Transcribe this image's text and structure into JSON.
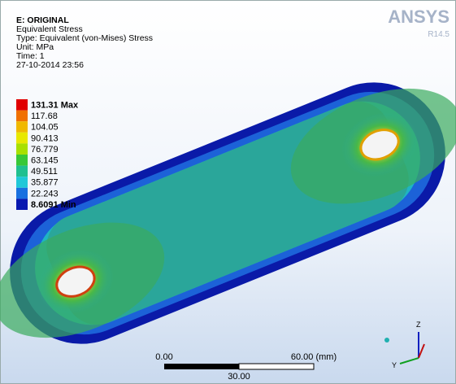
{
  "header": {
    "lines": [
      "E: ORIGINAL",
      "Equivalent Stress",
      "Type: Equivalent (von-Mises) Stress",
      "Unit: MPa",
      "Time: 1",
      "27-10-2014 23:56"
    ]
  },
  "brand": {
    "name": "ANSYS",
    "version": "R14.5"
  },
  "legend": [
    {
      "label": "131.31 Max",
      "color": "#e00000"
    },
    {
      "label": "117.68",
      "color": "#f07000"
    },
    {
      "label": "104.05",
      "color": "#f0b800"
    },
    {
      "label": "90.413",
      "color": "#e8e800"
    },
    {
      "label": "76.779",
      "color": "#a8e000"
    },
    {
      "label": "63.145",
      "color": "#38c838"
    },
    {
      "label": "49.511",
      "color": "#20c090"
    },
    {
      "label": "35.877",
      "color": "#20c8d8"
    },
    {
      "label": "22.243",
      "color": "#1870e0"
    },
    {
      "label": "8.6091 Min",
      "color": "#0818b0"
    }
  ],
  "scale_bar": {
    "start": "0.00",
    "end": "60.00 (mm)",
    "mid": "30.00"
  },
  "triad": {
    "z": "Z",
    "y": "Y"
  }
}
